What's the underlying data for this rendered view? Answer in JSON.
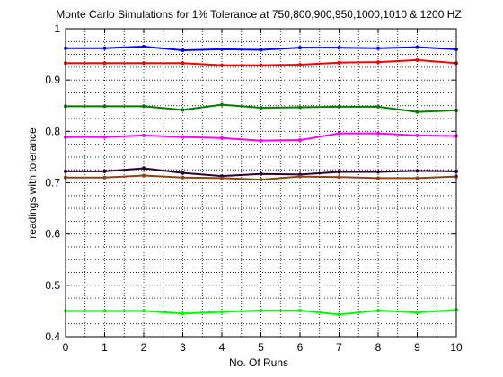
{
  "chart_data": {
    "type": "line",
    "title": "Monte Carlo Simulations for 1% Tolerance at 750,800,900,950,1000,1010 & 1200 HZ",
    "xlabel": "No. Of Runs",
    "ylabel": "readings with tolerance",
    "xlim": [
      0,
      10
    ],
    "ylim": [
      0.4,
      1
    ],
    "xticks": [
      "0",
      "1",
      "2",
      "3",
      "4",
      "5",
      "6",
      "7",
      "8",
      "9",
      "10"
    ],
    "yticks": [
      "0.4",
      "0.5",
      "0.6",
      "0.7",
      "0.8",
      "0.9",
      "1"
    ],
    "grid": true,
    "grid_style": "dotted",
    "x": [
      0,
      1,
      2,
      3,
      4,
      5,
      6,
      7,
      8,
      9,
      10
    ],
    "series": [
      {
        "color": "#0000ff",
        "values": [
          0.962,
          0.962,
          0.965,
          0.958,
          0.96,
          0.959,
          0.963,
          0.963,
          0.962,
          0.964,
          0.96
        ]
      },
      {
        "color": "#ff0000",
        "values": [
          0.933,
          0.933,
          0.933,
          0.933,
          0.929,
          0.929,
          0.93,
          0.934,
          0.935,
          0.939,
          0.933
        ]
      },
      {
        "color": "#008000",
        "values": [
          0.849,
          0.849,
          0.849,
          0.842,
          0.852,
          0.846,
          0.847,
          0.848,
          0.848,
          0.838,
          0.841
        ]
      },
      {
        "color": "#ff00ff",
        "values": [
          0.789,
          0.789,
          0.792,
          0.789,
          0.787,
          0.782,
          0.783,
          0.796,
          0.796,
          0.792,
          0.791
        ]
      },
      {
        "color": "#2a0033",
        "values": [
          0.722,
          0.722,
          0.728,
          0.719,
          0.713,
          0.717,
          0.716,
          0.721,
          0.721,
          0.723,
          0.722
        ]
      },
      {
        "color": "#8b4513",
        "values": [
          0.71,
          0.71,
          0.714,
          0.71,
          0.709,
          0.706,
          0.712,
          0.711,
          0.709,
          0.709,
          0.712
        ]
      },
      {
        "color": "#00ff00",
        "values": [
          0.45,
          0.45,
          0.45,
          0.445,
          0.448,
          0.451,
          0.451,
          0.443,
          0.451,
          0.447,
          0.452
        ]
      }
    ]
  }
}
